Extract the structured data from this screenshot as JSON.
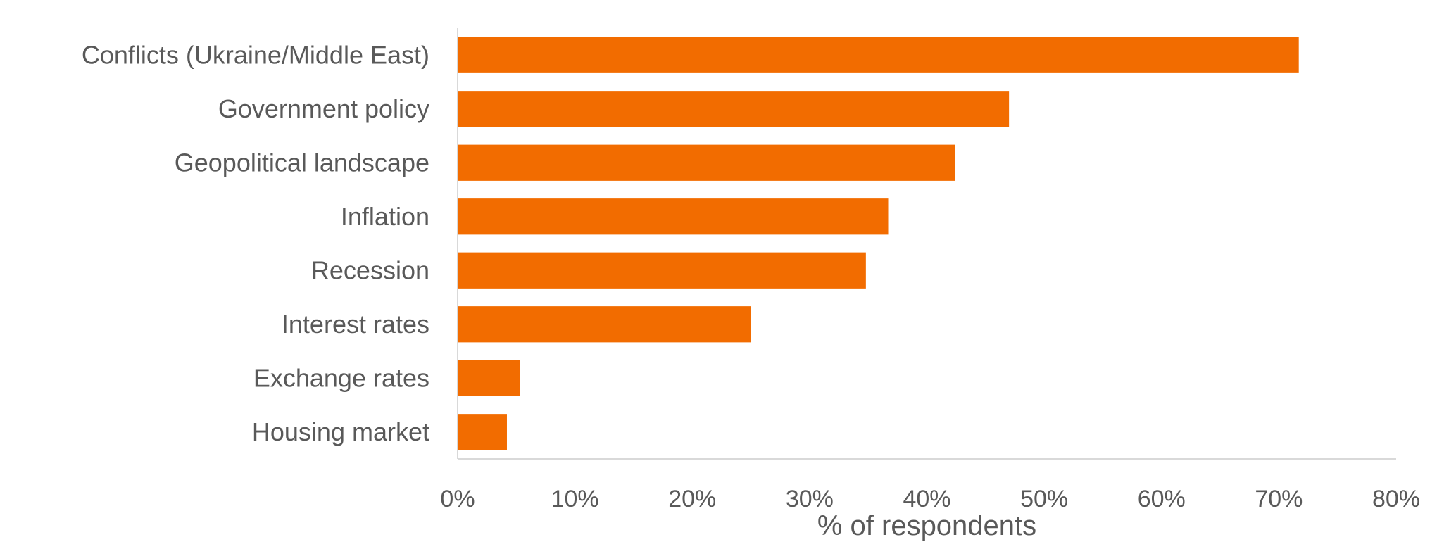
{
  "chart_data": {
    "type": "bar",
    "orientation": "horizontal",
    "categories": [
      "Conflicts (Ukraine/Middle East)",
      "Government policy",
      "Geopolitical landscape",
      "Inflation",
      "Recession",
      "Interest rates",
      "Exchange rates",
      "Housing market"
    ],
    "values": [
      71.7,
      47.0,
      42.4,
      36.7,
      34.8,
      25.0,
      5.3,
      4.2
    ],
    "xlabel": "% of respondents",
    "ylabel": "",
    "title": "",
    "xlim": [
      0,
      80
    ],
    "x_ticks": [
      0,
      10,
      20,
      30,
      40,
      50,
      60,
      70,
      80
    ],
    "x_tick_labels": [
      "0%",
      "10%",
      "20%",
      "30%",
      "40%",
      "50%",
      "60%",
      "70%",
      "80%"
    ],
    "bar_color": "#F26C00",
    "grid": false,
    "legend": "none"
  }
}
